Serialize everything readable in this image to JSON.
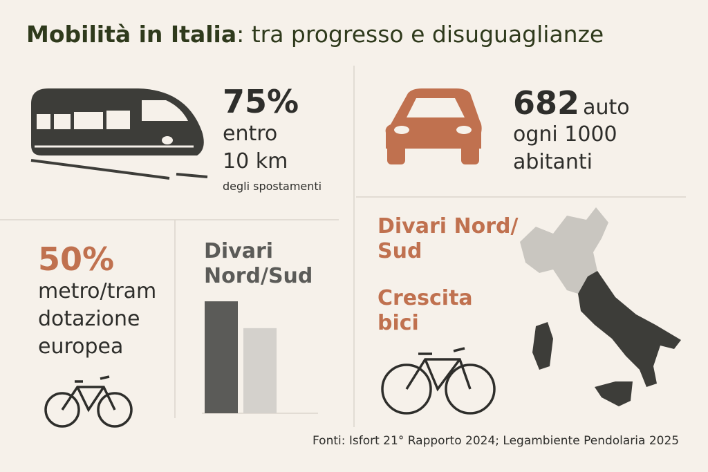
{
  "header": {
    "title_bold": "Mobilità in Italia",
    "title_rest": ": tra progresso e disuguaglianze"
  },
  "train": {
    "stat": "75%",
    "lines": [
      "entro",
      "10 km"
    ],
    "note": "degli spostamenti"
  },
  "car": {
    "stat": "682",
    "unit": "auto",
    "lines": [
      "ogni 1000",
      "abitanti"
    ]
  },
  "metro": {
    "stat": "50%",
    "lines": [
      "metro/tram",
      "dotazione",
      "europea"
    ]
  },
  "chart_data": {
    "type": "bar",
    "title_lines": [
      "Divari",
      "Nord/Sud"
    ],
    "values": [
      100,
      76
    ],
    "colors": [
      "#5b5b58",
      "#d4d1cc"
    ]
  },
  "right": {
    "divari_lines": [
      "Divari Nord/",
      "Sud"
    ],
    "bici_lines": [
      "Crescita",
      "bici"
    ]
  },
  "footer": {
    "source": "Fonti: Isfort 21° Rapporto 2024; Legambiente Pendolaria 2025"
  }
}
